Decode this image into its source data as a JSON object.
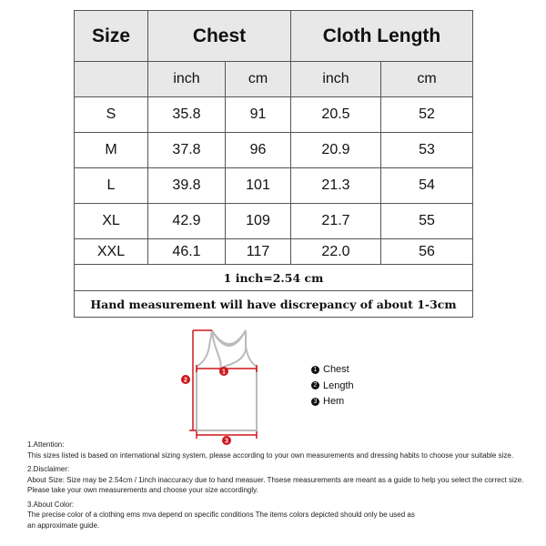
{
  "table": {
    "headers": [
      "Size",
      "Chest",
      "Cloth Length"
    ],
    "units": [
      "inch",
      "cm",
      "inch",
      "cm"
    ],
    "rows": [
      [
        "S",
        "35.8",
        "91",
        "20.5",
        "52"
      ],
      [
        "M",
        "37.8",
        "96",
        "20.9",
        "53"
      ],
      [
        "L",
        "39.8",
        "101",
        "21.3",
        "54"
      ],
      [
        "XL",
        "42.9",
        "109",
        "21.7",
        "55"
      ],
      [
        "XXL",
        "46.1",
        "117",
        "22.0",
        "56"
      ]
    ],
    "conversion": "1 inch=2.54 cm",
    "discrepancy": "Hand measurement will have discrepancy of about 1-3cm"
  },
  "diagram": {
    "markers": [
      "1",
      "2",
      "3"
    ],
    "legend": [
      {
        "num": "1",
        "label": "Chest"
      },
      {
        "num": "2",
        "label": "Length"
      },
      {
        "num": "3",
        "label": "Hem"
      }
    ],
    "accent": "#d0161c"
  },
  "notes": [
    {
      "title": "1.Attention:",
      "lines": [
        "This sizes listed is based on international sizing system, please according to your own measurements and dressing habits to choose your suitable size."
      ]
    },
    {
      "title": "2.Disclaimer:",
      "lines": [
        "About Size: Size may be 2.54cm / 1inch inaccuracy due to hand measuer. Thsese measurements are meant as a guide to help you select the correct size.",
        "Please take your own measurements and choose your size accordingly."
      ]
    },
    {
      "title": "3.About Color:",
      "lines": [
        "The precise color of a clothing ems mva depend on specific conditions The items colors depicted should only be used as",
        "an approximate guide."
      ]
    }
  ]
}
